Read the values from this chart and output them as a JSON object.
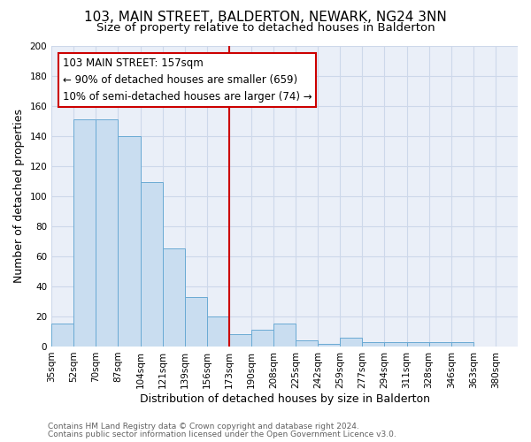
{
  "title": "103, MAIN STREET, BALDERTON, NEWARK, NG24 3NN",
  "subtitle": "Size of property relative to detached houses in Balderton",
  "xlabel": "Distribution of detached houses by size in Balderton",
  "ylabel": "Number of detached properties",
  "footnote1": "Contains HM Land Registry data © Crown copyright and database right 2024.",
  "footnote2": "Contains public sector information licensed under the Open Government Licence v3.0.",
  "bin_labels": [
    "35sqm",
    "52sqm",
    "70sqm",
    "87sqm",
    "104sqm",
    "121sqm",
    "139sqm",
    "156sqm",
    "173sqm",
    "190sqm",
    "208sqm",
    "225sqm",
    "242sqm",
    "259sqm",
    "277sqm",
    "294sqm",
    "311sqm",
    "328sqm",
    "346sqm",
    "363sqm",
    "380sqm"
  ],
  "bar_heights": [
    15,
    151,
    151,
    140,
    109,
    65,
    33,
    20,
    8,
    11,
    15,
    4,
    2,
    6,
    3,
    3,
    3,
    3,
    3,
    0,
    0
  ],
  "bar_color": "#c9ddf0",
  "bar_edge_color": "#6aaad4",
  "annotation_line1": "103 MAIN STREET: 157sqm",
  "annotation_line2": "← 90% of detached houses are smaller (659)",
  "annotation_line3": "10% of semi-detached houses are larger (74) →",
  "annotation_box_edge_color": "#cc0000",
  "vline_color": "#cc0000",
  "vline_x_index": 7,
  "ylim": [
    0,
    200
  ],
  "yticks": [
    0,
    20,
    40,
    60,
    80,
    100,
    120,
    140,
    160,
    180,
    200
  ],
  "grid_color": "#cdd8ea",
  "bg_color": "#eaeff8",
  "title_fontsize": 11,
  "subtitle_fontsize": 9.5,
  "label_fontsize": 9,
  "tick_fontsize": 7.5,
  "annot_fontsize": 8.5,
  "footnote_fontsize": 6.5
}
